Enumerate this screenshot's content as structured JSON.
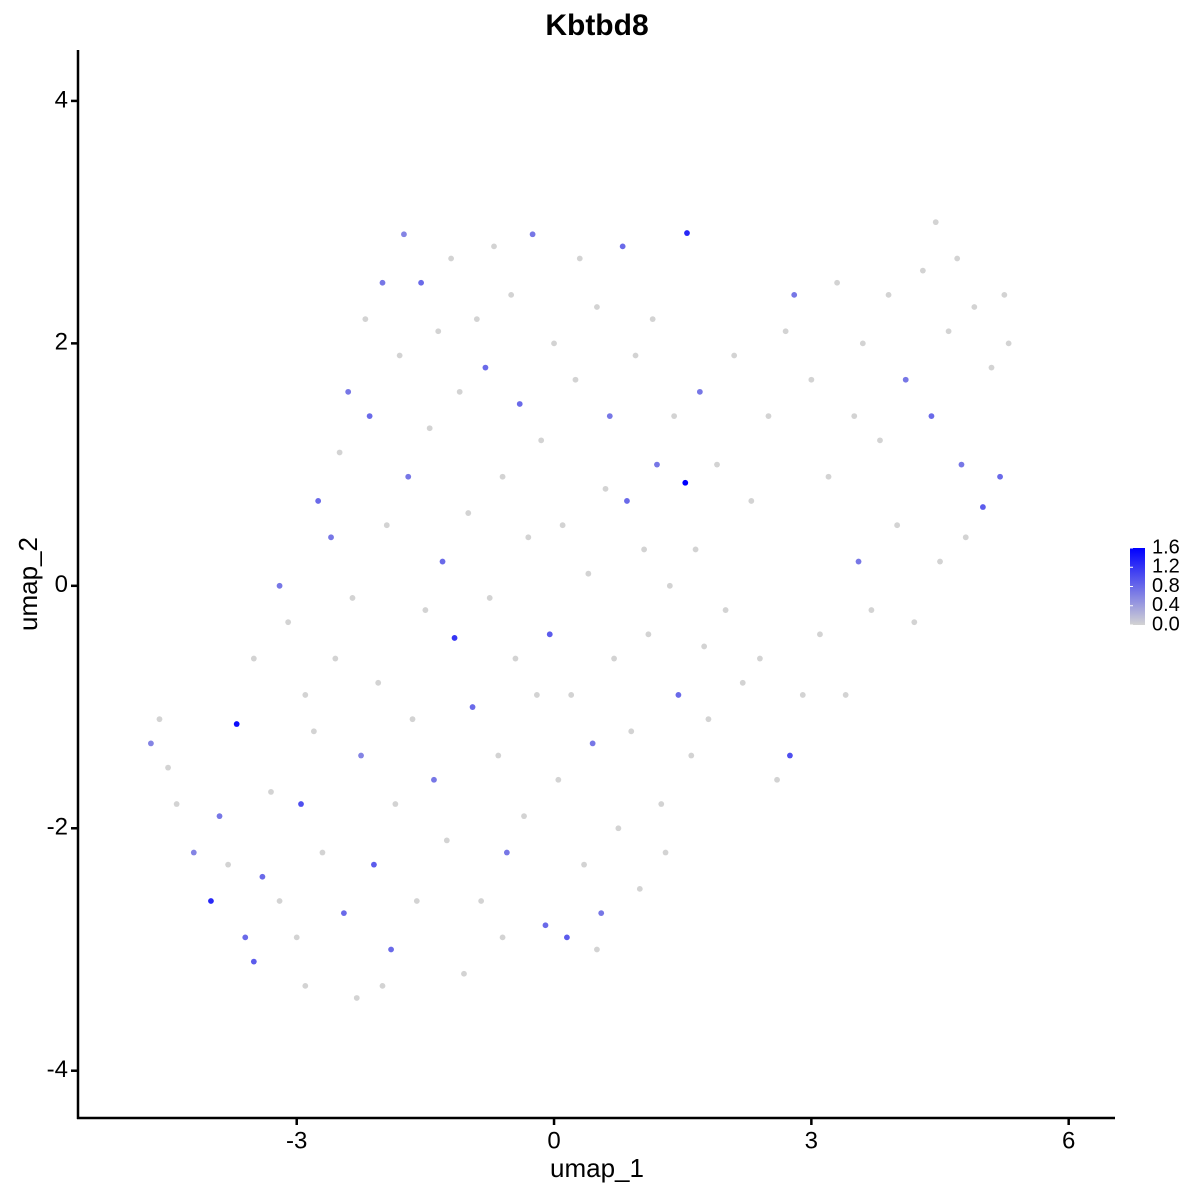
{
  "chart_data": {
    "type": "scatter",
    "title": "Kbtbd8",
    "x_label": "umap_1",
    "y_label": "umap_2",
    "xlim": [
      -5.55,
      6.54
    ],
    "ylim": [
      -4.39,
      4.42
    ],
    "xticks": [
      -3,
      0,
      3,
      6
    ],
    "yticks": [
      -4,
      -2,
      0,
      2,
      4
    ],
    "grid": false,
    "colors": [
      "#d3d3d3",
      "#0000ff"
    ],
    "colorbar": {
      "range": [
        0,
        1.6
      ],
      "ticks": [
        {
          "value": 0,
          "label": "0.0"
        },
        0.4,
        0.8,
        1.2,
        1.6
      ]
    },
    "x": [
      -4.7,
      -4.6,
      -4.5,
      -4.4,
      -4.2,
      -4.0,
      -3.9,
      -3.8,
      -3.7,
      -3.6,
      -3.5,
      -3.4,
      -3.3,
      -3.2,
      -3.1,
      -3.0,
      -2.95,
      -2.9,
      -2.8,
      -2.75,
      -2.7,
      -2.6,
      -2.55,
      -2.5,
      -2.45,
      -2.4,
      -2.35,
      -2.3,
      -2.25,
      -2.2,
      -2.15,
      -2.1,
      -2.05,
      -2.0,
      -1.95,
      -1.9,
      -1.85,
      -1.8,
      -1.75,
      -1.7,
      -1.65,
      -1.6,
      -1.55,
      -1.5,
      -1.45,
      -1.4,
      -1.35,
      -1.3,
      -1.25,
      -1.2,
      -1.16,
      -1.1,
      -1.05,
      -1.0,
      -0.95,
      -0.9,
      -0.85,
      -0.8,
      -0.75,
      -0.7,
      -0.65,
      -0.6,
      -0.55,
      -0.5,
      -0.45,
      -0.4,
      -0.35,
      -0.3,
      -0.25,
      -0.2,
      -0.15,
      -0.1,
      -0.05,
      0.0,
      0.05,
      0.1,
      0.15,
      0.2,
      0.25,
      0.3,
      0.35,
      0.4,
      0.45,
      0.5,
      0.55,
      0.6,
      0.65,
      0.7,
      0.75,
      0.8,
      0.85,
      0.9,
      0.95,
      1.0,
      1.05,
      1.1,
      1.15,
      1.2,
      1.25,
      1.3,
      1.35,
      1.4,
      1.45,
      1.53,
      1.55,
      1.6,
      1.65,
      1.7,
      1.75,
      1.8,
      1.9,
      2.0,
      2.1,
      2.2,
      2.3,
      2.4,
      2.5,
      2.6,
      2.7,
      2.75,
      2.8,
      2.9,
      3.0,
      3.1,
      3.2,
      3.3,
      3.4,
      3.5,
      3.55,
      3.6,
      3.7,
      3.8,
      3.9,
      4.0,
      4.1,
      4.2,
      4.3,
      4.4,
      4.45,
      4.5,
      4.6,
      4.7,
      4.75,
      4.8,
      4.9,
      5.0,
      5.1,
      5.2,
      5.25,
      5.3,
      0.5,
      -0.6,
      -2.0,
      -3.2,
      -2.9,
      -3.5
    ],
    "y": [
      -1.3,
      -1.1,
      -1.5,
      -1.8,
      -2.2,
      -2.6,
      -1.9,
      -2.3,
      -1.14,
      -2.9,
      -3.1,
      -2.4,
      -1.7,
      -2.6,
      -0.3,
      -2.9,
      -1.8,
      -3.3,
      -1.2,
      0.7,
      -2.2,
      0.4,
      -0.6,
      1.1,
      -2.7,
      1.6,
      -0.1,
      -3.4,
      -1.4,
      2.2,
      1.4,
      -2.3,
      -0.8,
      2.5,
      0.5,
      -3.0,
      -1.8,
      1.9,
      2.9,
      0.9,
      -1.1,
      -2.6,
      2.5,
      -0.2,
      1.3,
      -1.6,
      2.1,
      0.2,
      -2.1,
      2.7,
      -0.43,
      1.6,
      -3.2,
      0.6,
      -1.0,
      2.2,
      -2.6,
      1.8,
      -0.1,
      2.8,
      -1.4,
      0.9,
      -2.2,
      2.4,
      -0.6,
      1.5,
      -1.9,
      0.4,
      2.9,
      -0.9,
      1.2,
      -2.8,
      -0.4,
      2.0,
      -1.6,
      0.5,
      -2.9,
      -0.9,
      1.7,
      2.7,
      -2.3,
      0.1,
      -1.3,
      2.3,
      -2.7,
      0.8,
      1.4,
      -0.6,
      -2.0,
      2.8,
      0.7,
      -1.2,
      1.9,
      -2.5,
      0.3,
      -0.4,
      2.2,
      1.0,
      -1.8,
      -2.2,
      0.0,
      1.4,
      -0.9,
      0.85,
      2.91,
      -1.4,
      0.3,
      1.6,
      -0.5,
      -1.1,
      1.0,
      -0.2,
      1.9,
      -0.8,
      0.7,
      -0.6,
      1.4,
      -1.6,
      2.1,
      -1.4,
      2.4,
      -0.9,
      1.7,
      -0.4,
      0.9,
      2.5,
      -0.9,
      1.4,
      0.2,
      2.0,
      -0.2,
      1.2,
      2.4,
      0.5,
      1.7,
      -0.3,
      2.6,
      1.4,
      3.0,
      0.2,
      2.1,
      2.7,
      1.0,
      0.4,
      2.3,
      0.65,
      1.8,
      0.9,
      2.4,
      2.0,
      -3.0,
      -2.9,
      -3.3,
      0.0,
      -0.9,
      -0.6
    ],
    "values": [
      0.6,
      0,
      0,
      0,
      0.6,
      1.3,
      0.7,
      0,
      1.5,
      0.8,
      0.9,
      0.8,
      0,
      0,
      0,
      0,
      1.0,
      0,
      0,
      0.8,
      0,
      0.7,
      0,
      0,
      0.8,
      0.7,
      0,
      0,
      0.6,
      0,
      0.8,
      0.9,
      0,
      0.7,
      0,
      0.8,
      0,
      0,
      0.6,
      0.7,
      0,
      0,
      0.8,
      0,
      0,
      0.7,
      0,
      0.8,
      0,
      0,
      1.2,
      0,
      0,
      0,
      0.8,
      0,
      0,
      0.8,
      0,
      0,
      0,
      0,
      0.7,
      0,
      0,
      0.8,
      0,
      0,
      0.7,
      0,
      0,
      0.8,
      0.9,
      0,
      0,
      0,
      0.9,
      0,
      0,
      0,
      0,
      0,
      0.7,
      0,
      0.7,
      0,
      0.7,
      0,
      0,
      0.8,
      0.8,
      0,
      0,
      0,
      0,
      0,
      0,
      0.7,
      0,
      0,
      0,
      0,
      0.8,
      1.6,
      1.3,
      0,
      0,
      0.7,
      0,
      0,
      0,
      0,
      0,
      0,
      0,
      0,
      0,
      0,
      0,
      1.0,
      0.7,
      0,
      0,
      0,
      0,
      0,
      0,
      0,
      0.7,
      0,
      0,
      0,
      0,
      0,
      0.7,
      0,
      0,
      0.8,
      0,
      0,
      0,
      0,
      0.7,
      0,
      0,
      0.9,
      0,
      0.8,
      0,
      0,
      0,
      0,
      0,
      0.7,
      0,
      0
    ]
  }
}
